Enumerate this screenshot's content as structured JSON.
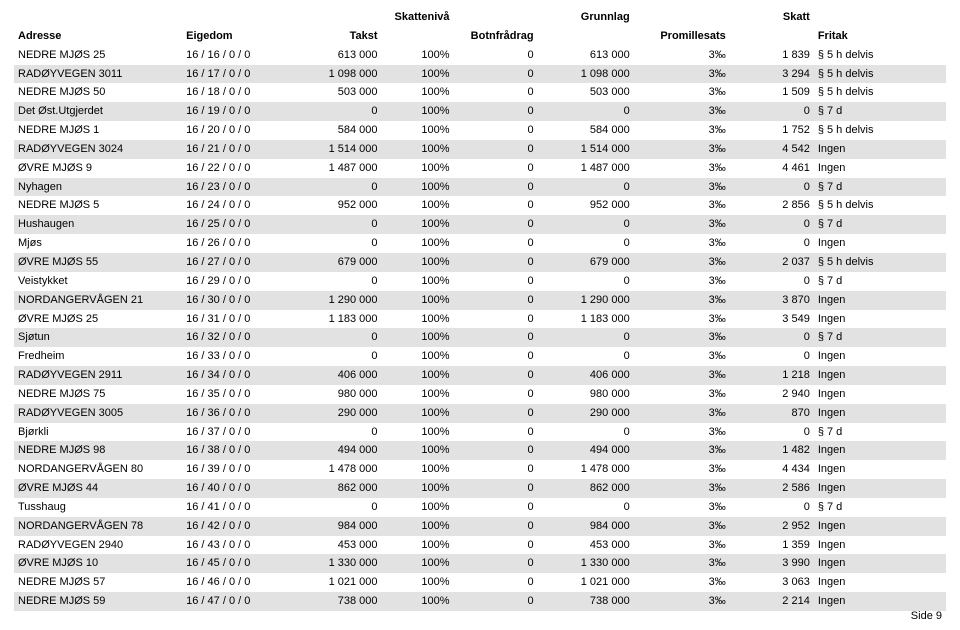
{
  "headerTop": {
    "skattniva": "Skattenivå",
    "grunnlag": "Grunnlag",
    "skatt": "Skatt"
  },
  "header": {
    "adresse": "Adresse",
    "eigedom": "Eigedom",
    "takst": "Takst",
    "botnfradrag": "Botnfrådrag",
    "promillesats": "Promillesats",
    "fritak": "Fritak"
  },
  "footer": "Side 9",
  "colors": {
    "altRow": "#e2e2e2",
    "bg": "#ffffff",
    "text": "#000000"
  },
  "rows": [
    {
      "a": "NEDRE MJØS 25",
      "e": "16 / 16 / 0 / 0",
      "t": "613 000",
      "n": "100%",
      "b": "0",
      "g": "613 000",
      "p": "3‰",
      "s": "1 839",
      "f": "§ 5 h delvis"
    },
    {
      "a": "RADØYVEGEN 3011",
      "e": "16 / 17 / 0 / 0",
      "t": "1 098 000",
      "n": "100%",
      "b": "0",
      "g": "1 098 000",
      "p": "3‰",
      "s": "3 294",
      "f": "§ 5 h delvis"
    },
    {
      "a": "NEDRE MJØS 50",
      "e": "16 / 18 / 0 / 0",
      "t": "503 000",
      "n": "100%",
      "b": "0",
      "g": "503 000",
      "p": "3‰",
      "s": "1 509",
      "f": "§ 5 h delvis"
    },
    {
      "a": "Det Øst.Utgjerdet",
      "e": "16 / 19 / 0 / 0",
      "t": "0",
      "n": "100%",
      "b": "0",
      "g": "0",
      "p": "3‰",
      "s": "0",
      "f": "§ 7 d"
    },
    {
      "a": "NEDRE MJØS 1",
      "e": "16 / 20 / 0 / 0",
      "t": "584 000",
      "n": "100%",
      "b": "0",
      "g": "584 000",
      "p": "3‰",
      "s": "1 752",
      "f": "§ 5 h delvis"
    },
    {
      "a": "RADØYVEGEN 3024",
      "e": "16 / 21 / 0 / 0",
      "t": "1 514 000",
      "n": "100%",
      "b": "0",
      "g": "1 514 000",
      "p": "3‰",
      "s": "4 542",
      "f": "Ingen"
    },
    {
      "a": "ØVRE MJØS 9",
      "e": "16 / 22 / 0 / 0",
      "t": "1 487 000",
      "n": "100%",
      "b": "0",
      "g": "1 487 000",
      "p": "3‰",
      "s": "4 461",
      "f": "Ingen"
    },
    {
      "a": "Nyhagen",
      "e": "16 / 23 / 0 / 0",
      "t": "0",
      "n": "100%",
      "b": "0",
      "g": "0",
      "p": "3‰",
      "s": "0",
      "f": "§ 7 d"
    },
    {
      "a": "NEDRE MJØS 5",
      "e": "16 / 24 / 0 / 0",
      "t": "952 000",
      "n": "100%",
      "b": "0",
      "g": "952 000",
      "p": "3‰",
      "s": "2 856",
      "f": "§ 5 h delvis"
    },
    {
      "a": "Hushaugen",
      "e": "16 / 25 / 0 / 0",
      "t": "0",
      "n": "100%",
      "b": "0",
      "g": "0",
      "p": "3‰",
      "s": "0",
      "f": "§ 7 d"
    },
    {
      "a": "Mjøs",
      "e": "16 / 26 / 0 / 0",
      "t": "0",
      "n": "100%",
      "b": "0",
      "g": "0",
      "p": "3‰",
      "s": "0",
      "f": "Ingen"
    },
    {
      "a": "ØVRE MJØS 55",
      "e": "16 / 27 / 0 / 0",
      "t": "679 000",
      "n": "100%",
      "b": "0",
      "g": "679 000",
      "p": "3‰",
      "s": "2 037",
      "f": "§ 5 h delvis"
    },
    {
      "a": "Veistykket",
      "e": "16 / 29 / 0 / 0",
      "t": "0",
      "n": "100%",
      "b": "0",
      "g": "0",
      "p": "3‰",
      "s": "0",
      "f": "§ 7 d"
    },
    {
      "a": "NORDANGERVÅGEN 21",
      "e": "16 / 30 / 0 / 0",
      "t": "1 290 000",
      "n": "100%",
      "b": "0",
      "g": "1 290 000",
      "p": "3‰",
      "s": "3 870",
      "f": "Ingen"
    },
    {
      "a": "ØVRE MJØS 25",
      "e": "16 / 31 / 0 / 0",
      "t": "1 183 000",
      "n": "100%",
      "b": "0",
      "g": "1 183 000",
      "p": "3‰",
      "s": "3 549",
      "f": "Ingen"
    },
    {
      "a": "Sjøtun",
      "e": "16 / 32 / 0 / 0",
      "t": "0",
      "n": "100%",
      "b": "0",
      "g": "0",
      "p": "3‰",
      "s": "0",
      "f": "§ 7 d"
    },
    {
      "a": "Fredheim",
      "e": "16 / 33 / 0 / 0",
      "t": "0",
      "n": "100%",
      "b": "0",
      "g": "0",
      "p": "3‰",
      "s": "0",
      "f": "Ingen"
    },
    {
      "a": "RADØYVEGEN 2911",
      "e": "16 / 34 / 0 / 0",
      "t": "406 000",
      "n": "100%",
      "b": "0",
      "g": "406 000",
      "p": "3‰",
      "s": "1 218",
      "f": "Ingen"
    },
    {
      "a": "NEDRE MJØS 75",
      "e": "16 / 35 / 0 / 0",
      "t": "980 000",
      "n": "100%",
      "b": "0",
      "g": "980 000",
      "p": "3‰",
      "s": "2 940",
      "f": "Ingen"
    },
    {
      "a": "RADØYVEGEN 3005",
      "e": "16 / 36 / 0 / 0",
      "t": "290 000",
      "n": "100%",
      "b": "0",
      "g": "290 000",
      "p": "3‰",
      "s": "870",
      "f": "Ingen"
    },
    {
      "a": "Bjørkli",
      "e": "16 / 37 / 0 / 0",
      "t": "0",
      "n": "100%",
      "b": "0",
      "g": "0",
      "p": "3‰",
      "s": "0",
      "f": "§ 7 d"
    },
    {
      "a": "NEDRE MJØS 98",
      "e": "16 / 38 / 0 / 0",
      "t": "494 000",
      "n": "100%",
      "b": "0",
      "g": "494 000",
      "p": "3‰",
      "s": "1 482",
      "f": "Ingen"
    },
    {
      "a": "NORDANGERVÅGEN 80",
      "e": "16 / 39 / 0 / 0",
      "t": "1 478 000",
      "n": "100%",
      "b": "0",
      "g": "1 478 000",
      "p": "3‰",
      "s": "4 434",
      "f": "Ingen"
    },
    {
      "a": "ØVRE MJØS 44",
      "e": "16 / 40 / 0 / 0",
      "t": "862 000",
      "n": "100%",
      "b": "0",
      "g": "862 000",
      "p": "3‰",
      "s": "2 586",
      "f": "Ingen"
    },
    {
      "a": "Tusshaug",
      "e": "16 / 41 / 0 / 0",
      "t": "0",
      "n": "100%",
      "b": "0",
      "g": "0",
      "p": "3‰",
      "s": "0",
      "f": "§ 7 d"
    },
    {
      "a": "NORDANGERVÅGEN 78",
      "e": "16 / 42 / 0 / 0",
      "t": "984 000",
      "n": "100%",
      "b": "0",
      "g": "984 000",
      "p": "3‰",
      "s": "2 952",
      "f": "Ingen"
    },
    {
      "a": "RADØYVEGEN 2940",
      "e": "16 / 43 / 0 / 0",
      "t": "453 000",
      "n": "100%",
      "b": "0",
      "g": "453 000",
      "p": "3‰",
      "s": "1 359",
      "f": "Ingen"
    },
    {
      "a": "ØVRE MJØS 10",
      "e": "16 / 45 / 0 / 0",
      "t": "1 330 000",
      "n": "100%",
      "b": "0",
      "g": "1 330 000",
      "p": "3‰",
      "s": "3 990",
      "f": "Ingen"
    },
    {
      "a": "NEDRE MJØS 57",
      "e": "16 / 46 / 0 / 0",
      "t": "1 021 000",
      "n": "100%",
      "b": "0",
      "g": "1 021 000",
      "p": "3‰",
      "s": "3 063",
      "f": "Ingen"
    },
    {
      "a": "NEDRE MJØS 59",
      "e": "16 / 47 / 0 / 0",
      "t": "738 000",
      "n": "100%",
      "b": "0",
      "g": "738 000",
      "p": "3‰",
      "s": "2 214",
      "f": "Ingen"
    }
  ]
}
